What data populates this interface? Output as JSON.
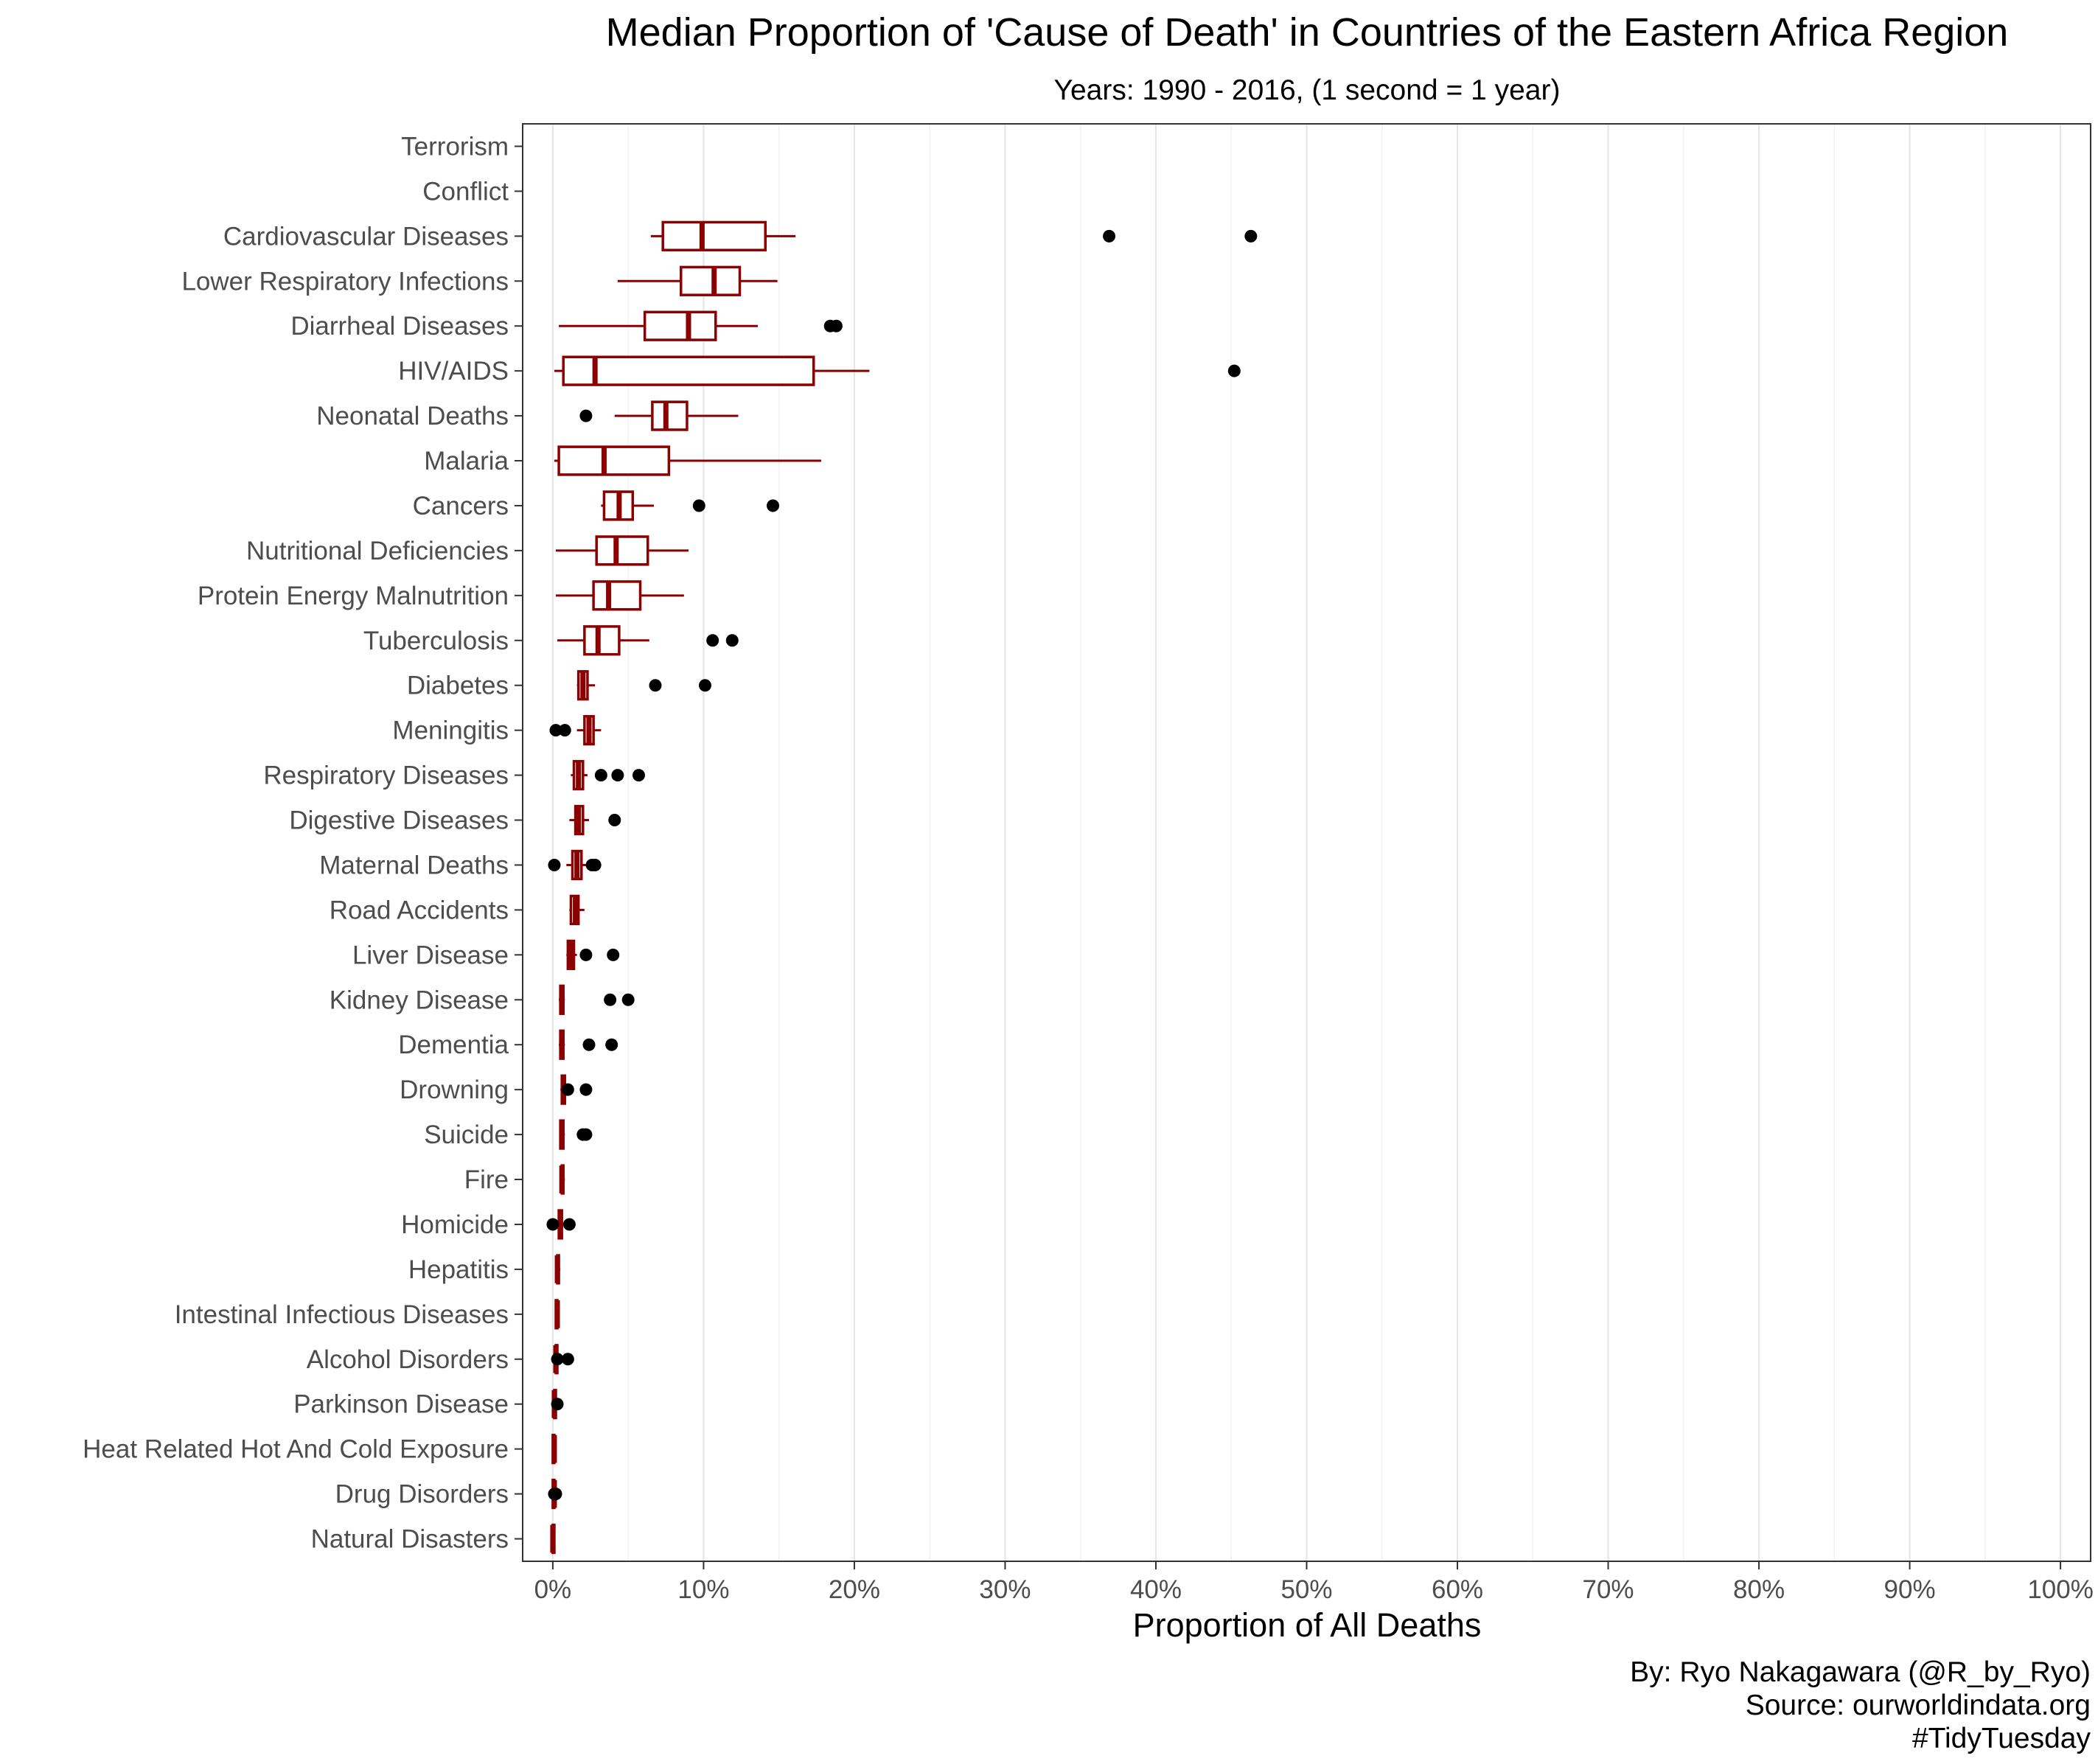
{
  "chart_data": {
    "type": "boxplot",
    "title": "Median Proportion of 'Cause of Death' in Countries of the Eastern Africa Region",
    "subtitle": "Years: 1990 - 2016, (1 second = 1 year)",
    "xlabel": "Proportion of All Deaths",
    "ylabel": "",
    "xlim": [
      -0.02,
      1.02
    ],
    "x_ticks": [
      0,
      0.1,
      0.2,
      0.3,
      0.4,
      0.5,
      0.6,
      0.7,
      0.8,
      0.9,
      1.0
    ],
    "x_tick_labels": [
      "0%",
      "10%",
      "20%",
      "30%",
      "40%",
      "50%",
      "60%",
      "70%",
      "80%",
      "90%",
      "100%"
    ],
    "grid": "vertical",
    "box_color": "#8b0000",
    "outlier_color": "#000000",
    "captions": [
      "By: Ryo Nakagawara (@R_by_Ryo)",
      "Source: ourworldindata.org",
      "#TidyTuesday"
    ],
    "categories": [
      {
        "name": "Terrorism",
        "box": null,
        "outliers": []
      },
      {
        "name": "Conflict",
        "box": null,
        "outliers": []
      },
      {
        "name": "Cardiovascular Diseases",
        "box": {
          "wlo": 0.065,
          "q1": 0.073,
          "median": 0.099,
          "q3": 0.141,
          "whi": 0.161
        },
        "outliers": [
          0.369,
          0.463
        ]
      },
      {
        "name": "Lower Respiratory Infections",
        "box": {
          "wlo": 0.043,
          "q1": 0.085,
          "median": 0.107,
          "q3": 0.124,
          "whi": 0.149
        },
        "outliers": []
      },
      {
        "name": "Diarrheal Diseases",
        "box": {
          "wlo": 0.004,
          "q1": 0.061,
          "median": 0.09,
          "q3": 0.108,
          "whi": 0.136
        },
        "outliers": [
          0.184,
          0.188
        ]
      },
      {
        "name": "HIV/AIDS",
        "box": {
          "wlo": 0.001,
          "q1": 0.007,
          "median": 0.028,
          "q3": 0.173,
          "whi": 0.21
        },
        "outliers": [
          0.452
        ]
      },
      {
        "name": "Neonatal Deaths",
        "box": {
          "wlo": 0.041,
          "q1": 0.066,
          "median": 0.075,
          "q3": 0.089,
          "whi": 0.123
        },
        "outliers": [
          0.022
        ]
      },
      {
        "name": "Malaria",
        "box": {
          "wlo": 0.001,
          "q1": 0.004,
          "median": 0.034,
          "q3": 0.077,
          "whi": 0.178
        },
        "outliers": []
      },
      {
        "name": "Cancers",
        "box": {
          "wlo": 0.032,
          "q1": 0.034,
          "median": 0.044,
          "q3": 0.053,
          "whi": 0.067
        },
        "outliers": [
          0.097,
          0.146
        ]
      },
      {
        "name": "Nutritional Deficiencies",
        "box": {
          "wlo": 0.002,
          "q1": 0.029,
          "median": 0.042,
          "q3": 0.063,
          "whi": 0.09
        },
        "outliers": []
      },
      {
        "name": "Protein Energy Malnutrition",
        "box": {
          "wlo": 0.002,
          "q1": 0.027,
          "median": 0.037,
          "q3": 0.058,
          "whi": 0.087
        },
        "outliers": []
      },
      {
        "name": "Tuberculosis",
        "box": {
          "wlo": 0.003,
          "q1": 0.021,
          "median": 0.03,
          "q3": 0.044,
          "whi": 0.064
        },
        "outliers": [
          0.106,
          0.119
        ]
      },
      {
        "name": "Diabetes",
        "box": {
          "wlo": 0.016,
          "q1": 0.017,
          "median": 0.02,
          "q3": 0.023,
          "whi": 0.028
        },
        "outliers": [
          0.068,
          0.101
        ]
      },
      {
        "name": "Meningitis",
        "box": {
          "wlo": 0.016,
          "q1": 0.021,
          "median": 0.024,
          "q3": 0.027,
          "whi": 0.032
        },
        "outliers": [
          0.002,
          0.008
        ]
      },
      {
        "name": "Respiratory Diseases",
        "box": {
          "wlo": 0.012,
          "q1": 0.014,
          "median": 0.017,
          "q3": 0.02,
          "whi": 0.023
        },
        "outliers": [
          0.032,
          0.043,
          0.057
        ]
      },
      {
        "name": "Digestive Diseases",
        "box": {
          "wlo": 0.011,
          "q1": 0.015,
          "median": 0.017,
          "q3": 0.02,
          "whi": 0.024
        },
        "outliers": [
          0.041
        ]
      },
      {
        "name": "Maternal Deaths",
        "box": {
          "wlo": 0.009,
          "q1": 0.013,
          "median": 0.016,
          "q3": 0.019,
          "whi": 0.024
        },
        "outliers": [
          0.001,
          0.026,
          0.028
        ]
      },
      {
        "name": "Road Accidents",
        "box": {
          "wlo": 0.011,
          "q1": 0.012,
          "median": 0.015,
          "q3": 0.017,
          "whi": 0.021
        },
        "outliers": []
      },
      {
        "name": "Liver Disease",
        "box": {
          "wlo": 0.009,
          "q1": 0.01,
          "median": 0.012,
          "q3": 0.014,
          "whi": 0.016
        },
        "outliers": [
          0.022,
          0.04
        ]
      },
      {
        "name": "Kidney Disease",
        "box": {
          "wlo": 0.004,
          "q1": 0.005,
          "median": 0.006,
          "q3": 0.007,
          "whi": 0.008
        },
        "outliers": [
          0.038,
          0.05
        ]
      },
      {
        "name": "Dementia",
        "box": {
          "wlo": 0.004,
          "q1": 0.005,
          "median": 0.006,
          "q3": 0.007,
          "whi": 0.008
        },
        "outliers": [
          0.024,
          0.039
        ]
      },
      {
        "name": "Drowning",
        "box": {
          "wlo": 0.005,
          "q1": 0.006,
          "median": 0.007,
          "q3": 0.008,
          "whi": 0.009
        },
        "outliers": [
          0.01,
          0.022
        ]
      },
      {
        "name": "Suicide",
        "box": {
          "wlo": 0.005,
          "q1": 0.005,
          "median": 0.006,
          "q3": 0.007,
          "whi": 0.008
        },
        "outliers": [
          0.02,
          0.022
        ]
      },
      {
        "name": "Fire",
        "box": {
          "wlo": 0.005,
          "q1": 0.006,
          "median": 0.006,
          "q3": 0.007,
          "whi": 0.008
        },
        "outliers": []
      },
      {
        "name": "Homicide",
        "box": {
          "wlo": 0.003,
          "q1": 0.004,
          "median": 0.005,
          "q3": 0.006,
          "whi": 0.007
        },
        "outliers": [
          0.0,
          0.011
        ]
      },
      {
        "name": "Hepatitis",
        "box": {
          "wlo": 0.002,
          "q1": 0.003,
          "median": 0.003,
          "q3": 0.004,
          "whi": 0.005
        },
        "outliers": []
      },
      {
        "name": "Intestinal Infectious Diseases",
        "box": {
          "wlo": 0.002,
          "q1": 0.002,
          "median": 0.003,
          "q3": 0.003,
          "whi": 0.004
        },
        "outliers": []
      },
      {
        "name": "Alcohol Disorders",
        "box": {
          "wlo": 0.001,
          "q1": 0.002,
          "median": 0.002,
          "q3": 0.003,
          "whi": 0.004
        },
        "outliers": [
          0.003,
          0.01
        ]
      },
      {
        "name": "Parkinson Disease",
        "box": {
          "wlo": 0.0,
          "q1": 0.001,
          "median": 0.001,
          "q3": 0.002,
          "whi": 0.002
        },
        "outliers": [
          0.003
        ]
      },
      {
        "name": "Heat Related Hot And Cold Exposure",
        "box": {
          "wlo": 0.0,
          "q1": 0.0,
          "median": 0.001,
          "q3": 0.001,
          "whi": 0.002
        },
        "outliers": []
      },
      {
        "name": "Drug Disorders",
        "box": {
          "wlo": 0.0,
          "q1": 0.0,
          "median": 0.001,
          "q3": 0.001,
          "whi": 0.001
        },
        "outliers": [
          0.001,
          0.002
        ]
      },
      {
        "name": "Natural Disasters",
        "box": {
          "wlo": 0.0,
          "q1": 0.0,
          "median": 0.0,
          "q3": 0.001,
          "whi": 0.001
        },
        "outliers": []
      }
    ]
  }
}
